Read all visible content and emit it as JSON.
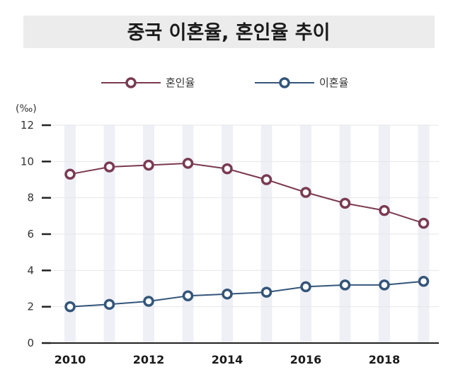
{
  "chart_data": {
    "type": "line",
    "title": "중국 이혼율, 혼인율 추이",
    "unit_label": "(‰)",
    "x": [
      2010,
      2011,
      2012,
      2013,
      2014,
      2015,
      2016,
      2017,
      2018,
      2019
    ],
    "x_tick_labels": [
      "2010",
      "2012",
      "2014",
      "2016",
      "2018"
    ],
    "x_tick_values": [
      2010,
      2012,
      2014,
      2016,
      2018
    ],
    "y_ticks": [
      0,
      2,
      4,
      6,
      8,
      10,
      12
    ],
    "ylim": [
      0,
      12
    ],
    "grid": true,
    "legend_position": "top",
    "series": [
      {
        "name": "혼인율",
        "color": "#7a3a52",
        "values": [
          9.3,
          9.7,
          9.8,
          9.9,
          9.6,
          9.0,
          8.3,
          7.7,
          7.3,
          6.6
        ]
      },
      {
        "name": "이혼율",
        "color": "#34557a",
        "values": [
          2.0,
          2.13,
          2.3,
          2.6,
          2.7,
          2.8,
          3.1,
          3.2,
          3.2,
          3.4
        ]
      }
    ]
  },
  "colors": {
    "title_band": "#ececec",
    "stripe": "#eef0f6",
    "grid": "#e6e6e6",
    "axis": "#222222"
  }
}
